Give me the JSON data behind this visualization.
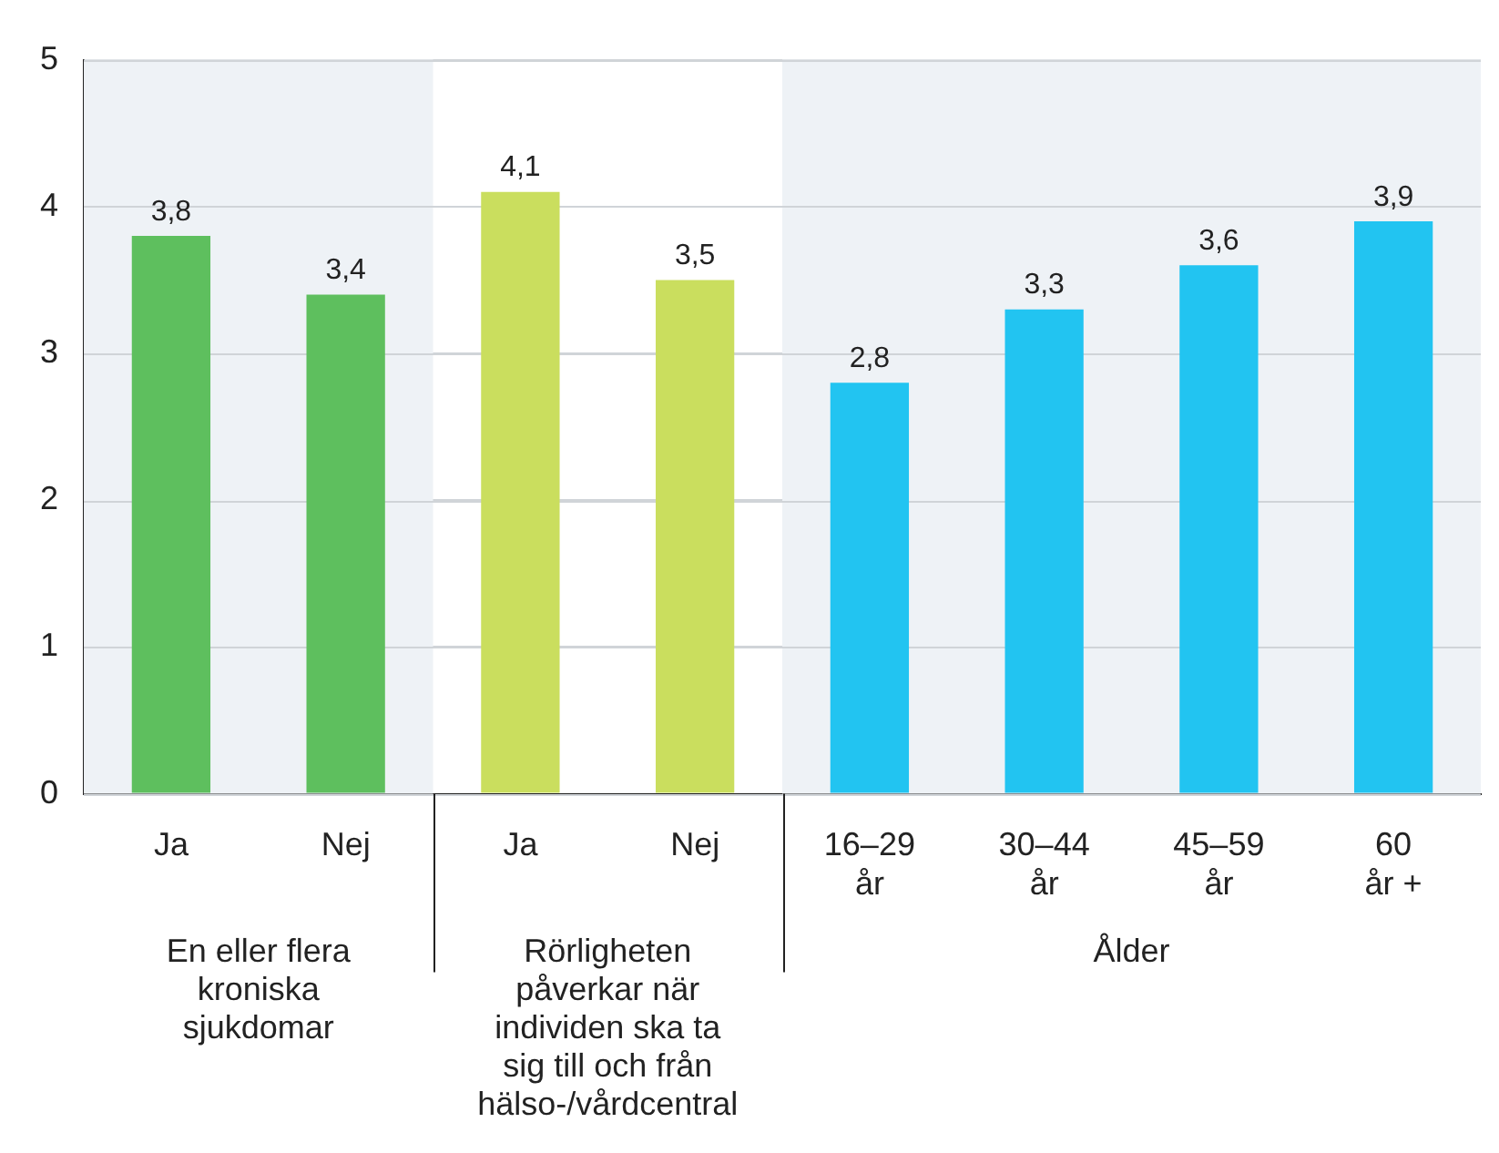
{
  "chart_data": {
    "type": "bar",
    "categories": [
      "Ja",
      "Nej",
      "Ja",
      "Nej",
      "16–29 år",
      "30–44 år",
      "45–59 år",
      "60 år +"
    ],
    "values": [
      3.8,
      3.4,
      4.1,
      3.5,
      2.8,
      3.3,
      3.6,
      3.9
    ],
    "colors": [
      "#5ebf5e",
      "#5ebf5e",
      "#cade5e",
      "#cade5e",
      "#22c4f1",
      "#22c4f1",
      "#22c4f1",
      "#22c4f1"
    ],
    "value_labels": [
      "3,8",
      "3,4",
      "4,1",
      "3,5",
      "2,8",
      "3,3",
      "3,6",
      "3,9"
    ],
    "ylim": [
      0,
      5
    ],
    "yticks": [
      0,
      1,
      2,
      3,
      4,
      5
    ],
    "grid": "y",
    "bands": [
      {
        "axis": "x",
        "from": "Ja",
        "to": "Nej",
        "color": "#eef2f6"
      },
      {
        "axis": "x",
        "from": "16–29 år",
        "to": "60 år +",
        "color": "#eef2f6"
      }
    ],
    "annotations": [
      "En eller flera kroniska sjukdomar",
      "Rörligheten påverkar när individen ska ta sig till och från hälso-/vårdcentral",
      "Ålder"
    ]
  }
}
